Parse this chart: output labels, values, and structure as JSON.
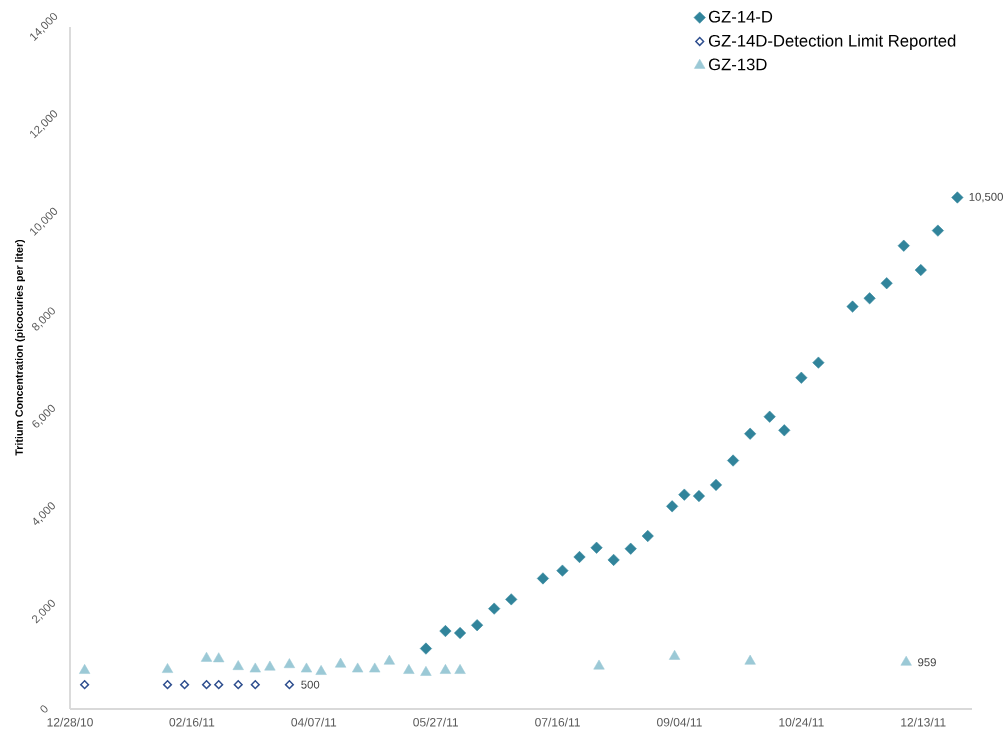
{
  "chart_data": {
    "type": "scatter",
    "ylabel": "Tritium Concentration (picocuries per liter)",
    "xlim": [
      "2010-12-28",
      "2012-01-02"
    ],
    "xticks": [
      {
        "value": "2010-12-28",
        "label": "12/28/10"
      },
      {
        "value": "2011-02-16",
        "label": "02/16/11"
      },
      {
        "value": "2011-04-07",
        "label": "04/07/11"
      },
      {
        "value": "2011-05-27",
        "label": "05/27/11"
      },
      {
        "value": "2011-07-16",
        "label": "07/16/11"
      },
      {
        "value": "2011-09-04",
        "label": "09/04/11"
      },
      {
        "value": "2011-10-24",
        "label": "10/24/11"
      },
      {
        "value": "2011-12-13",
        "label": "12/13/11"
      }
    ],
    "ylim": [
      0,
      14000
    ],
    "yticks": [
      0,
      {
        "value": 2000,
        "label": "2,000"
      },
      {
        "value": 4000,
        "label": "4,000"
      },
      {
        "value": 6000,
        "label": "6,000"
      },
      {
        "value": 8000,
        "label": "8,000"
      },
      {
        "value": 10000,
        "label": "10,000"
      },
      {
        "value": 12000,
        "label": "12,000"
      },
      {
        "value": 14000,
        "label": "14,000"
      }
    ],
    "legend": "top right",
    "series": [
      {
        "name": "GZ-14-D",
        "color": "#31849b",
        "marker": "diamond",
        "x": [
          "2011-05-23",
          "2011-05-31",
          "2011-06-06",
          "2011-06-13",
          "2011-06-20",
          "2011-06-27",
          "2011-07-10",
          "2011-07-18",
          "2011-07-25",
          "2011-08-01",
          "2011-08-08",
          "2011-08-15",
          "2011-08-22",
          "2011-09-01",
          "2011-09-06",
          "2011-09-12",
          "2011-09-19",
          "2011-09-26",
          "2011-10-03",
          "2011-10-11",
          "2011-10-17",
          "2011-10-24",
          "2011-10-31",
          "2011-11-14",
          "2011-11-21",
          "2011-11-28",
          "2011-12-05",
          "2011-12-12",
          "2011-12-19",
          "2011-12-27"
        ],
        "values": [
          1240,
          1600,
          1560,
          1720,
          2060,
          2250,
          2680,
          2840,
          3120,
          3310,
          3060,
          3290,
          3550,
          4160,
          4400,
          4370,
          4600,
          5100,
          5650,
          6000,
          5720,
          6800,
          7110,
          8260,
          8430,
          8740,
          9510,
          9010,
          9820,
          10500
        ],
        "value_labels": [
          null,
          null,
          null,
          null,
          null,
          null,
          null,
          null,
          null,
          null,
          null,
          null,
          null,
          null,
          null,
          null,
          null,
          null,
          null,
          null,
          null,
          null,
          null,
          null,
          null,
          null,
          null,
          null,
          null,
          "10,500"
        ]
      },
      {
        "name": "GZ-14D-Detection Limit Reported",
        "color": "#2f4f8f",
        "marker": "diamond",
        "x": [
          "2011-01-03",
          "2011-02-06",
          "2011-02-13",
          "2011-02-22",
          "2011-02-27",
          "2011-03-07",
          "2011-03-14",
          "2011-03-28"
        ],
        "values": [
          500,
          500,
          500,
          500,
          500,
          500,
          500,
          500
        ],
        "value_labels": [
          null,
          null,
          null,
          null,
          null,
          null,
          null,
          "500"
        ]
      },
      {
        "name": "GZ-13D",
        "color": "#9bc9d6",
        "marker": "triangle",
        "x": [
          "2011-01-03",
          "2011-02-06",
          "2011-02-22",
          "2011-02-27",
          "2011-03-07",
          "2011-03-14",
          "2011-03-20",
          "2011-03-28",
          "2011-04-04",
          "2011-04-10",
          "2011-04-18",
          "2011-04-25",
          "2011-05-02",
          "2011-05-08",
          "2011-05-16",
          "2011-05-23",
          "2011-05-31",
          "2011-06-06",
          "2011-08-02",
          "2011-09-02",
          "2011-10-03",
          "2011-12-06"
        ],
        "values": [
          790,
          810,
          1040,
          1030,
          870,
          820,
          860,
          910,
          820,
          770,
          920,
          820,
          820,
          980,
          790,
          750,
          790,
          790,
          880,
          1080,
          980,
          959
        ],
        "value_labels": [
          null,
          null,
          null,
          null,
          null,
          null,
          null,
          null,
          null,
          null,
          null,
          null,
          null,
          null,
          null,
          null,
          null,
          null,
          null,
          null,
          null,
          "959"
        ]
      }
    ]
  }
}
